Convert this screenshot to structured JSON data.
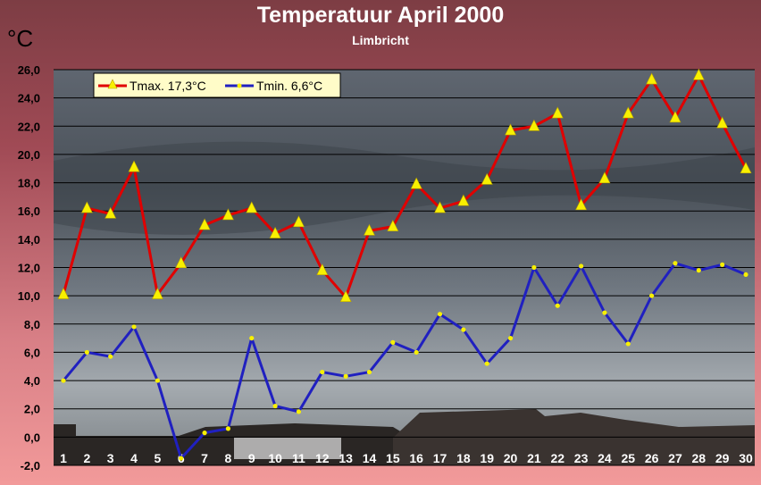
{
  "chart_data": {
    "type": "line",
    "title": "Temperatuur April 2000",
    "subtitle": "Limbricht",
    "ylabel": "°C",
    "xlabel": "",
    "ylim": [
      -2,
      26
    ],
    "yticks": [
      "-2,0",
      "0,0",
      "2,0",
      "4,0",
      "6,0",
      "8,0",
      "10,0",
      "12,0",
      "14,0",
      "16,0",
      "18,0",
      "20,0",
      "22,0",
      "24,0",
      "26,0"
    ],
    "categories": [
      "1",
      "2",
      "3",
      "4",
      "5",
      "6",
      "7",
      "8",
      "9",
      "10",
      "11",
      "12",
      "13",
      "14",
      "15",
      "16",
      "17",
      "18",
      "19",
      "20",
      "21",
      "22",
      "23",
      "24",
      "25",
      "26",
      "27",
      "28",
      "29",
      "30"
    ],
    "grid": true,
    "legend_position": "top-left",
    "series": [
      {
        "name": "Tmax. 17,3°C",
        "color": "#e00000",
        "marker": "triangle",
        "values": [
          10.1,
          16.2,
          15.8,
          19.1,
          10.1,
          12.3,
          15.0,
          15.7,
          16.2,
          14.4,
          15.2,
          11.8,
          9.9,
          14.6,
          14.9,
          17.9,
          16.2,
          16.7,
          18.2,
          21.7,
          22.0,
          22.9,
          16.4,
          18.3,
          22.9,
          25.3,
          22.6,
          25.6,
          22.2,
          19.0
        ]
      },
      {
        "name": "Tmin. 6,6°C",
        "color": "#2020c0",
        "marker": "dot",
        "values": [
          4.0,
          6.0,
          5.7,
          7.8,
          4.0,
          -1.5,
          0.3,
          0.6,
          7.0,
          2.2,
          1.8,
          4.6,
          4.3,
          4.6,
          6.7,
          6.0,
          8.7,
          7.6,
          5.2,
          7.0,
          12.0,
          9.3,
          12.1,
          8.8,
          6.6,
          10.0,
          12.3,
          11.8,
          12.2,
          11.5
        ]
      }
    ]
  }
}
